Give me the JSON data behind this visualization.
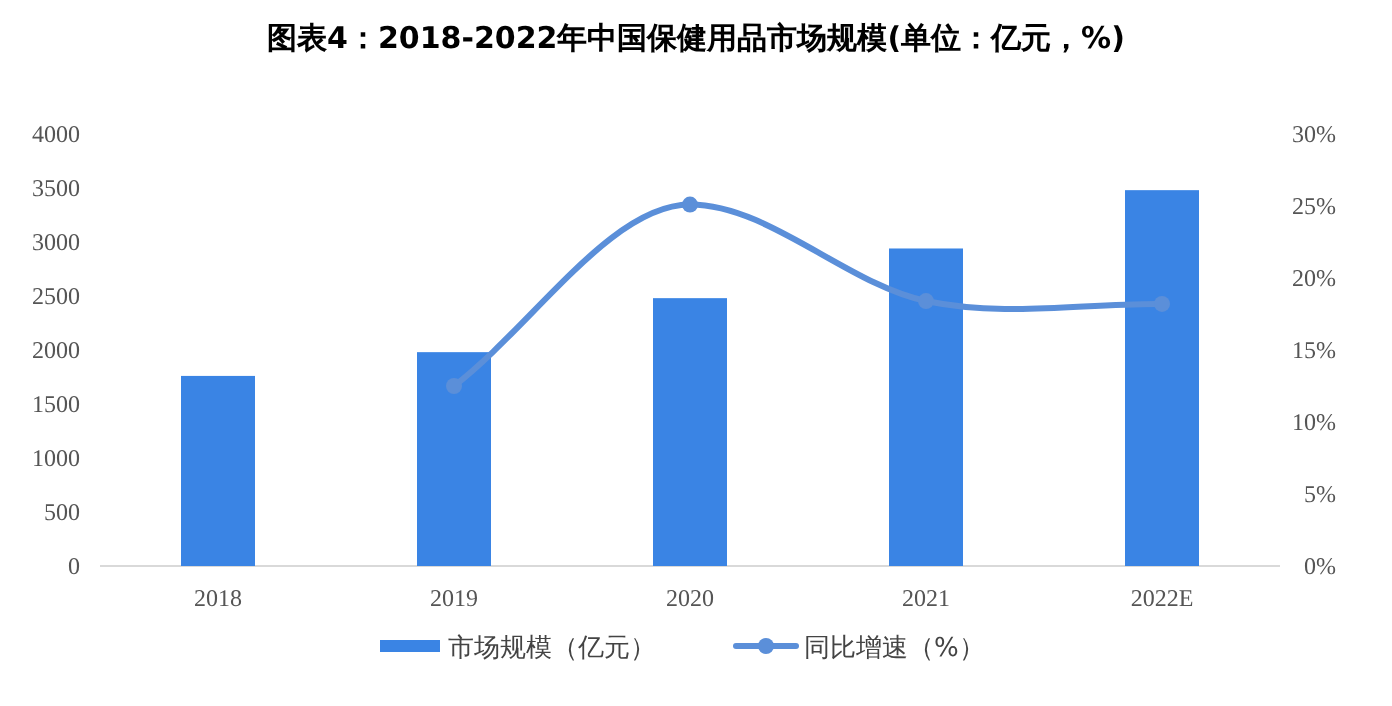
{
  "chart_data": {
    "type": "bar",
    "title": "图表4：2018-2022年中国保健用品市场规模(单位：亿元，%)",
    "categories": [
      "2018",
      "2019",
      "2020",
      "2021",
      "2022E"
    ],
    "series": [
      {
        "name": "市场规模（亿元）",
        "color": "#3a84e4",
        "values": [
          1760,
          1980,
          2480,
          2940,
          3480
        ]
      },
      {
        "name": "同比增速（%）",
        "type": "line",
        "axis": "y2",
        "color": "#5b8fd9",
        "values": [
          null,
          12.5,
          25.1,
          18.4,
          18.2
        ],
        "marker": "circle"
      }
    ],
    "ylim": [
      0,
      4000
    ],
    "yticks": [
      0,
      500,
      1000,
      1500,
      2000,
      2500,
      3000,
      3500,
      4000
    ],
    "y2lim": [
      0,
      30
    ],
    "y2ticks": [
      {
        "value": 0,
        "label": "0%"
      },
      {
        "value": 5,
        "label": "5%"
      },
      {
        "value": 10,
        "label": "10%"
      },
      {
        "value": 15,
        "label": "15%"
      },
      {
        "value": 20,
        "label": "20%"
      },
      {
        "value": 25,
        "label": "25%"
      },
      {
        "value": 30,
        "label": "30%"
      }
    ],
    "legend": "bottom"
  }
}
